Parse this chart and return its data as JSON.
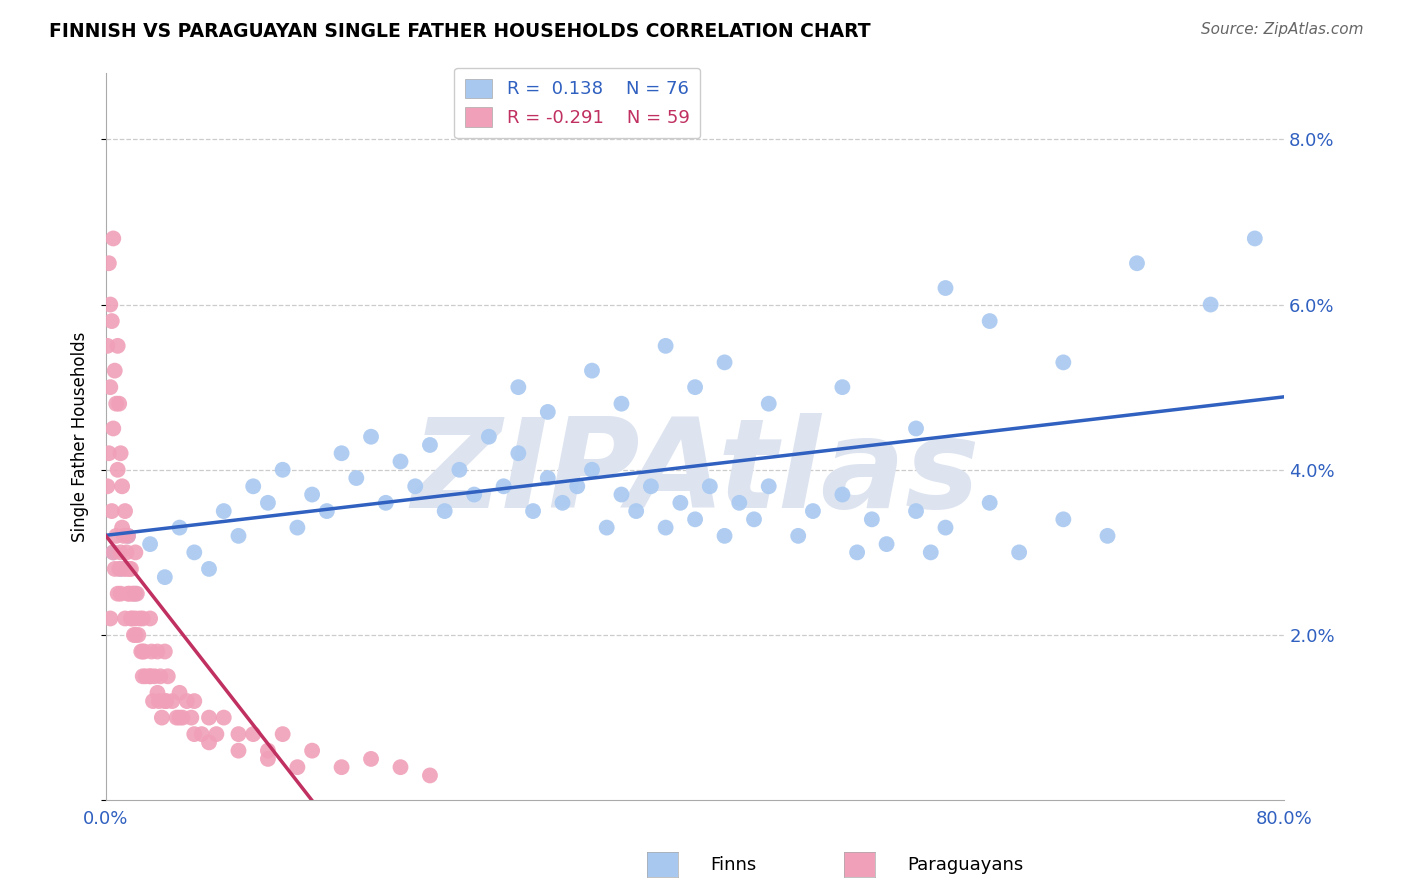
{
  "title": "FINNISH VS PARAGUAYAN SINGLE FATHER HOUSEHOLDS CORRELATION CHART",
  "source": "Source: ZipAtlas.com",
  "ylabel": "Single Father Households",
  "xlim": [
    0.0,
    0.8
  ],
  "ylim": [
    0.0,
    0.088
  ],
  "yticks": [
    0.0,
    0.02,
    0.04,
    0.06,
    0.08
  ],
  "ytick_labels": [
    "",
    "2.0%",
    "4.0%",
    "6.0%",
    "8.0%"
  ],
  "xticks": [
    0.0,
    0.2,
    0.4,
    0.6,
    0.8
  ],
  "xtick_labels": [
    "0.0%",
    "",
    "",
    "",
    "80.0%"
  ],
  "finn_R": 0.138,
  "finn_N": 76,
  "para_R": -0.291,
  "para_N": 59,
  "finn_color": "#a8c8f0",
  "para_color": "#f0a0b8",
  "finn_line_color": "#3060c0",
  "para_line_color": "#c03060",
  "watermark": "ZIPAtlas",
  "watermark_color": "#dde4f0",
  "legend_label_1": "Finns",
  "legend_label_2": "Paraguayans",
  "finn_x": [
    0.005,
    0.01,
    0.015,
    0.02,
    0.03,
    0.04,
    0.05,
    0.06,
    0.07,
    0.08,
    0.09,
    0.1,
    0.11,
    0.12,
    0.13,
    0.14,
    0.15,
    0.16,
    0.17,
    0.18,
    0.19,
    0.2,
    0.21,
    0.22,
    0.23,
    0.24,
    0.25,
    0.26,
    0.27,
    0.28,
    0.29,
    0.3,
    0.31,
    0.32,
    0.33,
    0.34,
    0.35,
    0.36,
    0.37,
    0.38,
    0.39,
    0.4,
    0.41,
    0.42,
    0.43,
    0.44,
    0.45,
    0.47,
    0.48,
    0.5,
    0.51,
    0.52,
    0.53,
    0.55,
    0.56,
    0.57,
    0.6,
    0.62,
    0.65,
    0.68,
    0.28,
    0.3,
    0.33,
    0.35,
    0.38,
    0.4,
    0.42,
    0.45,
    0.5,
    0.55,
    0.57,
    0.6,
    0.65,
    0.7,
    0.75,
    0.78
  ],
  "finn_y": [
    0.03,
    0.028,
    0.032,
    0.025,
    0.031,
    0.027,
    0.033,
    0.03,
    0.028,
    0.035,
    0.032,
    0.038,
    0.036,
    0.04,
    0.033,
    0.037,
    0.035,
    0.042,
    0.039,
    0.044,
    0.036,
    0.041,
    0.038,
    0.043,
    0.035,
    0.04,
    0.037,
    0.044,
    0.038,
    0.042,
    0.035,
    0.039,
    0.036,
    0.038,
    0.04,
    0.033,
    0.037,
    0.035,
    0.038,
    0.033,
    0.036,
    0.034,
    0.038,
    0.032,
    0.036,
    0.034,
    0.038,
    0.032,
    0.035,
    0.037,
    0.03,
    0.034,
    0.031,
    0.035,
    0.03,
    0.033,
    0.036,
    0.03,
    0.034,
    0.032,
    0.05,
    0.047,
    0.052,
    0.048,
    0.055,
    0.05,
    0.053,
    0.048,
    0.05,
    0.045,
    0.062,
    0.058,
    0.053,
    0.065,
    0.06,
    0.068
  ],
  "para_x": [
    0.001,
    0.002,
    0.003,
    0.004,
    0.005,
    0.006,
    0.007,
    0.008,
    0.009,
    0.01,
    0.01,
    0.011,
    0.012,
    0.013,
    0.014,
    0.015,
    0.016,
    0.017,
    0.018,
    0.019,
    0.02,
    0.02,
    0.021,
    0.022,
    0.023,
    0.024,
    0.025,
    0.025,
    0.026,
    0.027,
    0.03,
    0.03,
    0.031,
    0.032,
    0.033,
    0.035,
    0.036,
    0.037,
    0.038,
    0.04,
    0.041,
    0.042,
    0.045,
    0.048,
    0.05,
    0.052,
    0.055,
    0.058,
    0.06,
    0.065,
    0.07,
    0.075,
    0.08,
    0.09,
    0.1,
    0.11,
    0.12,
    0.14,
    0.18
  ],
  "para_y": [
    0.038,
    0.042,
    0.022,
    0.035,
    0.03,
    0.028,
    0.032,
    0.025,
    0.028,
    0.03,
    0.025,
    0.033,
    0.028,
    0.022,
    0.03,
    0.025,
    0.028,
    0.022,
    0.025,
    0.02,
    0.03,
    0.022,
    0.025,
    0.02,
    0.022,
    0.018,
    0.022,
    0.015,
    0.018,
    0.015,
    0.022,
    0.015,
    0.018,
    0.012,
    0.015,
    0.018,
    0.012,
    0.015,
    0.01,
    0.018,
    0.012,
    0.015,
    0.012,
    0.01,
    0.013,
    0.01,
    0.012,
    0.01,
    0.012,
    0.008,
    0.01,
    0.008,
    0.01,
    0.008,
    0.008,
    0.006,
    0.008,
    0.006,
    0.005
  ],
  "para_x_extra": [
    0.001,
    0.002,
    0.003,
    0.003,
    0.004,
    0.005,
    0.005,
    0.006,
    0.007,
    0.008,
    0.008,
    0.009,
    0.01,
    0.011,
    0.012,
    0.013,
    0.014,
    0.015,
    0.016,
    0.017,
    0.018,
    0.019,
    0.02,
    0.025,
    0.03,
    0.035,
    0.04,
    0.05,
    0.06,
    0.07,
    0.09,
    0.11,
    0.13,
    0.16,
    0.2,
    0.22
  ],
  "para_y_extra": [
    0.055,
    0.065,
    0.06,
    0.05,
    0.058,
    0.068,
    0.045,
    0.052,
    0.048,
    0.055,
    0.04,
    0.048,
    0.042,
    0.038,
    0.032,
    0.035,
    0.028,
    0.032,
    0.025,
    0.028,
    0.022,
    0.025,
    0.02,
    0.018,
    0.015,
    0.013,
    0.012,
    0.01,
    0.008,
    0.007,
    0.006,
    0.005,
    0.004,
    0.004,
    0.004,
    0.003
  ]
}
